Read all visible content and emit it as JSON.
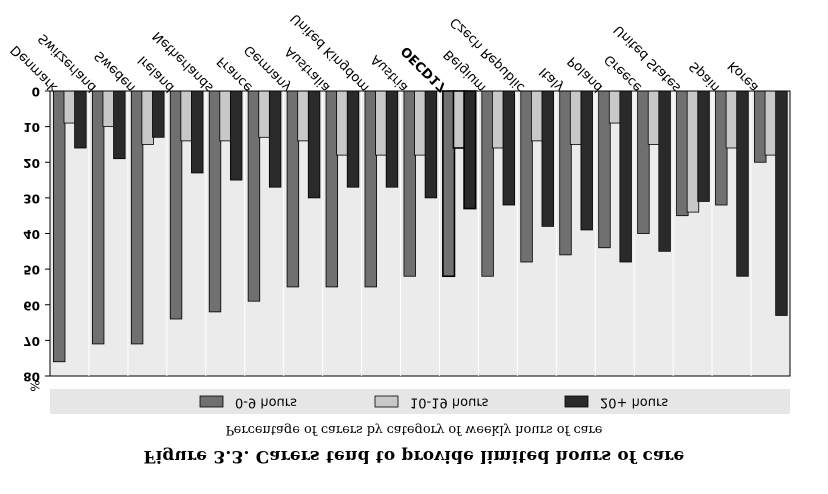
{
  "caption": {
    "title": "Figure 3.3. Carers tend to provide limited hours of care",
    "subtitle": "Percentage of carers by category of weekly hours of care"
  },
  "chart_data": {
    "type": "bar",
    "title": "Figure 3.3. Carers tend to provide limited hours of care",
    "subtitle": "Percentage of carers by category of weekly hours of care",
    "ylabel": "%",
    "ylim": [
      0,
      80
    ],
    "yticks": [
      0,
      10,
      20,
      30,
      40,
      50,
      60,
      70,
      80
    ],
    "y_inverted": true,
    "grid": false,
    "legend_position": "bottom",
    "categories": [
      "Denmark",
      "Switzerland",
      "Sweden",
      "Ireland",
      "Netherlands",
      "France",
      "Germany",
      "Australia",
      "United Kingdom",
      "Austria",
      "OECD17",
      "Belgium",
      "Czech Republic",
      "Italy",
      "Poland",
      "Greece",
      "United States",
      "Spain",
      "Korea"
    ],
    "highlight_category": "OECD17",
    "series": [
      {
        "name": "0-9 hours",
        "color": "#707070",
        "values": [
          76,
          71,
          71,
          64,
          62,
          59,
          55,
          55,
          55,
          52,
          52,
          52,
          48,
          46,
          44,
          40,
          35,
          32,
          20
        ]
      },
      {
        "name": "10-19 hours",
        "color": "#c8c8c8",
        "values": [
          9,
          10,
          15,
          14,
          14,
          13,
          14,
          18,
          18,
          18,
          16,
          16,
          14,
          15,
          9,
          15,
          34,
          16,
          18
        ]
      },
      {
        "name": "20+ hours",
        "color": "#2a2a2a",
        "values": [
          16,
          19,
          13,
          23,
          25,
          27,
          30,
          27,
          27,
          30,
          33,
          32,
          38,
          39,
          48,
          45,
          31,
          52,
          63
        ]
      }
    ]
  }
}
